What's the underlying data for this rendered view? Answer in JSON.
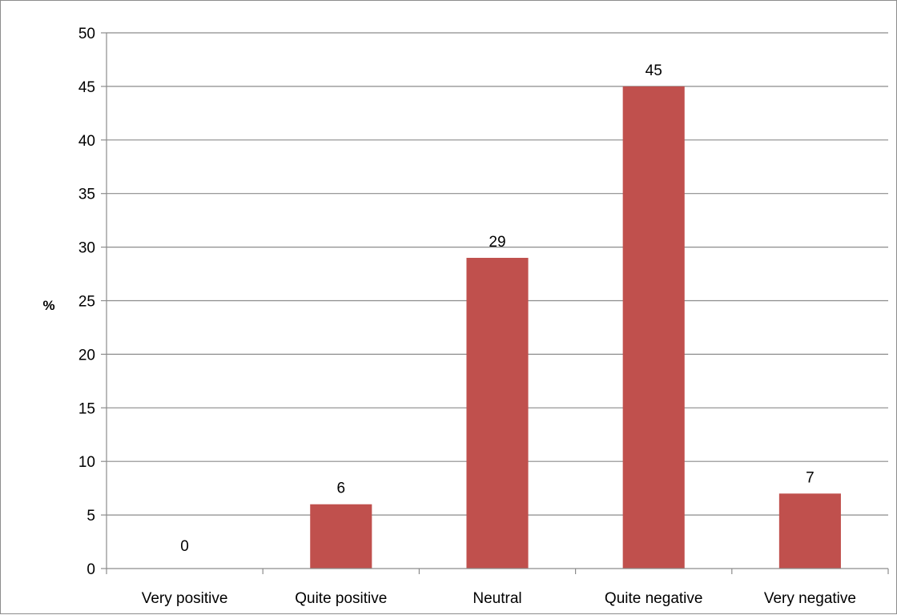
{
  "chart_data": {
    "type": "bar",
    "title": "",
    "xlabel": "",
    "ylabel": "%",
    "categories": [
      "Very positive",
      "Quite positive",
      "Neutral",
      "Quite negative",
      "Very negative"
    ],
    "values": [
      0,
      6,
      29,
      45,
      7
    ],
    "ylim": [
      0,
      50
    ],
    "yticks": [
      0,
      5,
      10,
      15,
      20,
      25,
      30,
      35,
      40,
      45,
      50
    ],
    "grid": true,
    "legend": "none",
    "data_labels": true,
    "colors": {
      "bar": "#c0504d",
      "grid": "#8c8c8c",
      "axis": "#8c8c8c"
    }
  }
}
